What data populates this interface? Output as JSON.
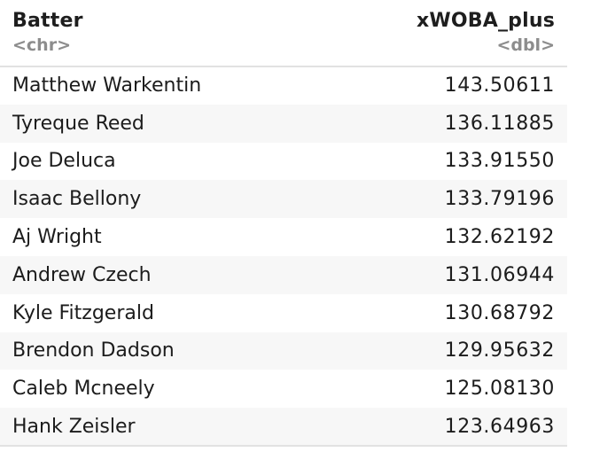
{
  "table": {
    "columns": [
      {
        "name": "Batter",
        "type": "<chr>",
        "align": "left"
      },
      {
        "name": "xWOBA_plus",
        "type": "<dbl>",
        "align": "right"
      }
    ],
    "rows": [
      {
        "batter": "Matthew Warkentin",
        "xwoba_plus": "143.50611"
      },
      {
        "batter": "Tyreque Reed",
        "xwoba_plus": "136.11885"
      },
      {
        "batter": "Joe Deluca",
        "xwoba_plus": "133.91550"
      },
      {
        "batter": "Isaac Bellony",
        "xwoba_plus": "133.79196"
      },
      {
        "batter": "Aj Wright",
        "xwoba_plus": "132.62192"
      },
      {
        "batter": "Andrew Czech",
        "xwoba_plus": "131.06944"
      },
      {
        "batter": "Kyle Fitzgerald",
        "xwoba_plus": "130.68792"
      },
      {
        "batter": "Brendon Dadson",
        "xwoba_plus": "129.95632"
      },
      {
        "batter": "Caleb Mcneely",
        "xwoba_plus": "125.08130"
      },
      {
        "batter": "Hank Zeisler",
        "xwoba_plus": "123.64963"
      }
    ]
  },
  "colors": {
    "header_text": "#1e1e1e",
    "type_text": "#8d8d8d",
    "row_stripe": "#f7f7f7",
    "rule": "#e2e2e2"
  }
}
